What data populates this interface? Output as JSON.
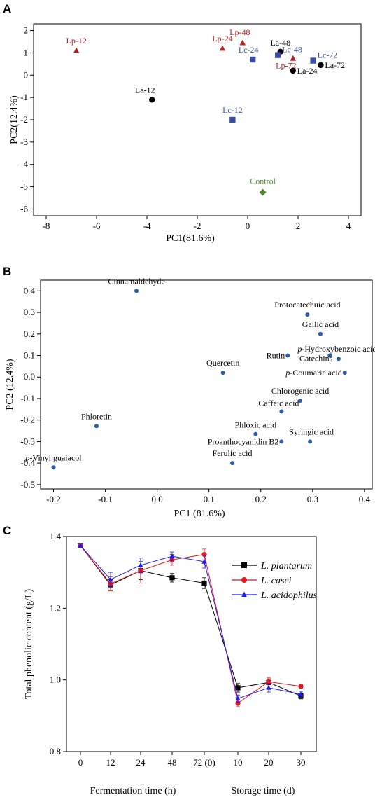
{
  "chart_data": [
    {
      "panel": "A",
      "type": "scatter",
      "xlabel": "PC1(81.6%)",
      "ylabel": "PC2(12.4%)",
      "xlim": [
        -8.5,
        4.5
      ],
      "ylim": [
        -6.3,
        2.3
      ],
      "xticks": [
        "-8",
        "-6",
        "-4",
        "-2",
        "0",
        "2",
        "4"
      ],
      "yticks": [
        "2",
        "1",
        "0",
        "-1",
        "-2",
        "-3",
        "-4",
        "-5",
        "-6"
      ],
      "grid": false,
      "colors": {
        "Lp": "#b22222",
        "La": "#000000",
        "Lc": "#3b4fa8",
        "Control": "#4f8a2e"
      },
      "points": [
        {
          "label": "Lp-12",
          "group": "Lp",
          "marker": "triangle",
          "x": -6.8,
          "y": 1.1
        },
        {
          "label": "Lp-24",
          "group": "Lp",
          "marker": "triangle",
          "x": -1.0,
          "y": 1.2
        },
        {
          "label": "Lp-48",
          "group": "Lp",
          "marker": "triangle",
          "x": -0.2,
          "y": 1.45
        },
        {
          "label": "Lp-72",
          "group": "Lp",
          "marker": "triangle",
          "x": 1.8,
          "y": 0.75
        },
        {
          "label": "La-12",
          "group": "La",
          "marker": "circle",
          "x": -3.8,
          "y": -1.1
        },
        {
          "label": "La-48",
          "group": "La",
          "marker": "circle",
          "x": 1.3,
          "y": 1.05
        },
        {
          "label": "La-24",
          "group": "La",
          "marker": "circle",
          "x": 1.8,
          "y": 0.2
        },
        {
          "label": "La-72",
          "group": "La",
          "marker": "circle",
          "x": 2.9,
          "y": 0.45
        },
        {
          "label": "Lc-12",
          "group": "Lc",
          "marker": "square",
          "x": -0.6,
          "y": -2.0
        },
        {
          "label": "Lc-24",
          "group": "Lc",
          "marker": "square",
          "x": 0.2,
          "y": 0.7
        },
        {
          "label": "Lc-48",
          "group": "Lc",
          "marker": "square",
          "x": 1.2,
          "y": 0.9
        },
        {
          "label": "Lc-72",
          "group": "Lc",
          "marker": "square",
          "x": 2.6,
          "y": 0.65
        },
        {
          "label": "Control",
          "group": "Control",
          "marker": "diamond",
          "x": 0.6,
          "y": -5.25
        }
      ]
    },
    {
      "panel": "B",
      "type": "scatter",
      "xlabel": "PC1 (81.6%)",
      "ylabel": "PC2 (12.4%)",
      "xlim": [
        -0.225,
        0.415
      ],
      "ylim": [
        -0.52,
        0.45
      ],
      "xticks": [
        "-0.2",
        "-0.1",
        "0.0",
        "0.1",
        "0.2",
        "0.3",
        "0.4"
      ],
      "yticks": [
        "0.4",
        "0.3",
        "0.2",
        "0.1",
        "0.0",
        "-0.1",
        "-0.2",
        "-0.3",
        "-0.4",
        "-0.5"
      ],
      "grid": false,
      "point_color": "#2a5ea8",
      "points": [
        {
          "label": "Cinnamaldehyde",
          "x": -0.04,
          "y": 0.4
        },
        {
          "label": "Protocatechuic acid",
          "x": 0.29,
          "y": 0.29
        },
        {
          "label": "Gallic acid",
          "x": 0.315,
          "y": 0.2
        },
        {
          "label": "p-Hydroxybenzoic acid",
          "x": 0.35,
          "y": 0.085
        },
        {
          "label": "Rutin",
          "x": 0.252,
          "y": 0.1
        },
        {
          "label": "Catechins",
          "x": 0.333,
          "y": 0.1
        },
        {
          "label": "Quercetin",
          "x": 0.127,
          "y": 0.02
        },
        {
          "label": "p-Coumaric acid",
          "x": 0.362,
          "y": 0.02
        },
        {
          "label": "Chlorogenic acid",
          "x": 0.276,
          "y": -0.11
        },
        {
          "label": "Caffeic acid",
          "x": 0.24,
          "y": -0.16
        },
        {
          "label": "Phloretin",
          "x": -0.117,
          "y": -0.228
        },
        {
          "label": "Phloxic acid",
          "x": 0.19,
          "y": -0.265
        },
        {
          "label": "Proanthocyanidin B2",
          "x": 0.24,
          "y": -0.3
        },
        {
          "label": "Syringic acid",
          "x": 0.295,
          "y": -0.3
        },
        {
          "label": "p-Vinyl guaiacol",
          "x": -0.2,
          "y": -0.42
        },
        {
          "label": "Ferulic acid",
          "x": 0.145,
          "y": -0.4
        }
      ]
    },
    {
      "panel": "C",
      "type": "line",
      "ylabel": "Total phenolic content (g/L)",
      "xlabel_left": "Fermentation time (h)",
      "xlabel_right": "Storage time (d)",
      "categories": [
        "0",
        "12",
        "24",
        "48",
        "72 (0)",
        "10",
        "20",
        "30"
      ],
      "yticks": [
        "1.4",
        "1.2",
        "1.0",
        "0.8"
      ],
      "ylim": [
        0.8,
        1.4
      ],
      "grid": false,
      "legend_position": "top-right",
      "series": [
        {
          "name": "L. plantarum",
          "color": "#000000",
          "marker": "square",
          "values": [
            1.375,
            1.265,
            1.305,
            1.285,
            1.27,
            0.978,
            0.993,
            0.955
          ],
          "errors": [
            0.005,
            0.015,
            0.025,
            0.012,
            0.015,
            0.012,
            0.01,
            0.008
          ]
        },
        {
          "name": "L. casei",
          "color": "#e8181c",
          "marker": "circle",
          "values": [
            1.375,
            1.268,
            1.305,
            1.335,
            1.35,
            0.935,
            0.995,
            0.982
          ],
          "errors": [
            0.005,
            0.02,
            0.035,
            0.015,
            0.015,
            0.01,
            0.012,
            0.005
          ]
        },
        {
          "name": "L. acidophilus",
          "color": "#1c1cf0",
          "marker": "triangle",
          "values": [
            1.375,
            1.28,
            1.32,
            1.345,
            1.33,
            0.948,
            0.978,
            0.96
          ],
          "errors": [
            0.005,
            0.02,
            0.02,
            0.012,
            0.018,
            0.01,
            0.012,
            0.008
          ]
        }
      ]
    }
  ],
  "panels": {
    "a": "A",
    "b": "B",
    "c": "C"
  }
}
